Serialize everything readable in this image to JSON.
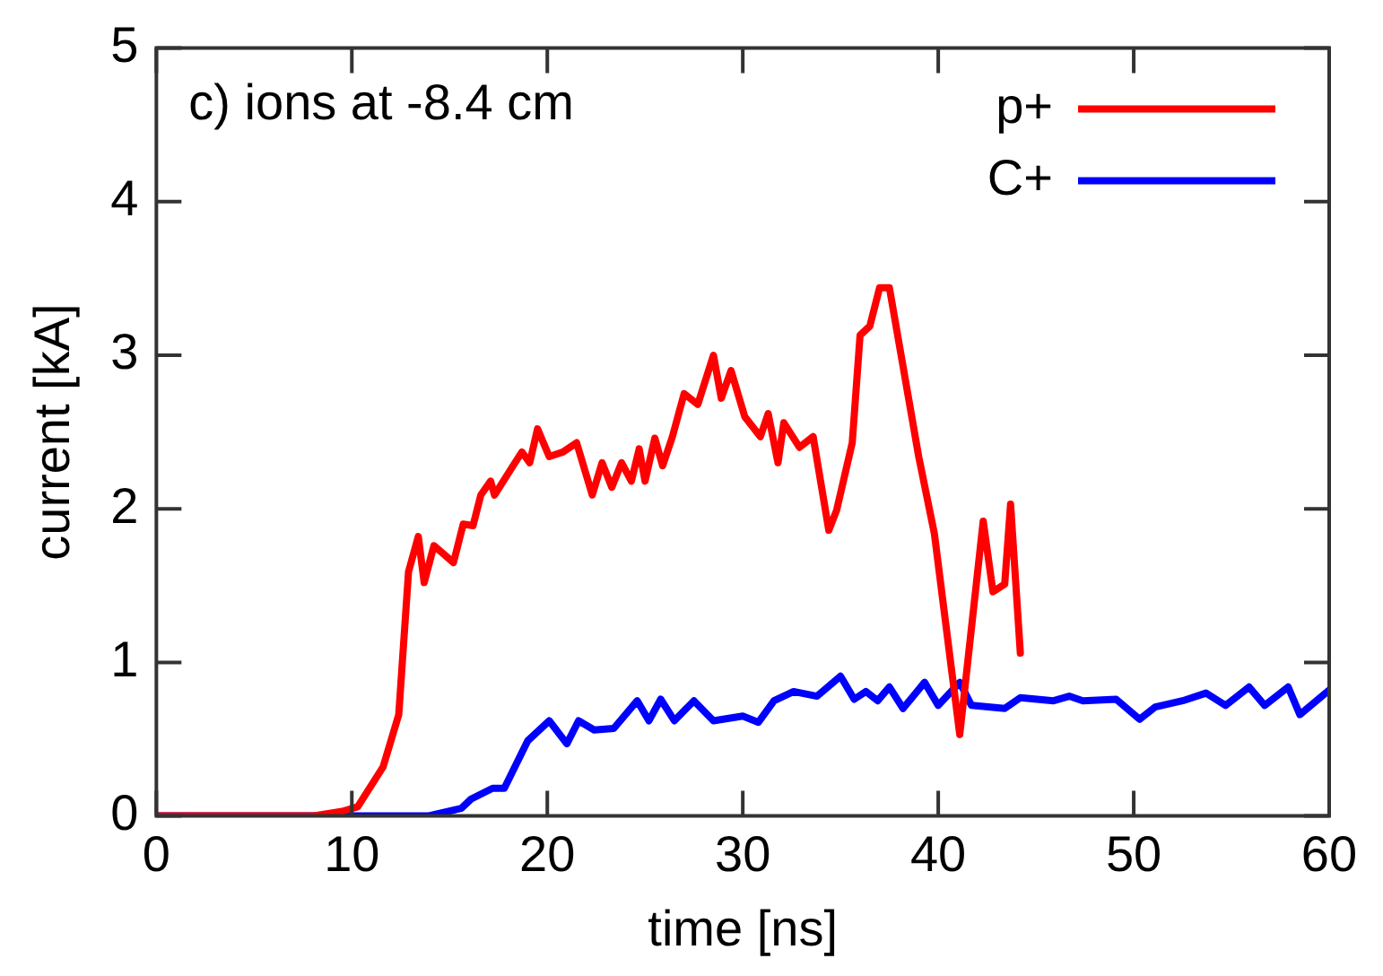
{
  "chart_data": {
    "type": "line",
    "xlabel": "time [ns]",
    "ylabel": "current [kA]",
    "annotations": [
      "c) ions at -8.4 cm"
    ],
    "xlim": [
      0,
      60
    ],
    "xticks": [
      0,
      10,
      20,
      30,
      40,
      50,
      60
    ],
    "ylim": [
      0,
      5
    ],
    "yticks": [
      0,
      1,
      2,
      3,
      4,
      5
    ],
    "grid": false,
    "legend": "top right",
    "marker": "none",
    "line_style": "solid",
    "series": [
      {
        "name": "p+",
        "color": "#ff0000",
        "x": [
          0,
          8,
          9.5,
          10.3,
          11.6,
          12.4,
          12.9,
          13.4,
          13.7,
          14.2,
          15.2,
          15.7,
          16.2,
          16.6,
          17.1,
          17.3,
          18.2,
          18.7,
          19.1,
          19.5,
          20.1,
          20.8,
          21.5,
          22.3,
          22.8,
          23.3,
          23.8,
          24.3,
          24.7,
          25.0,
          25.5,
          25.9,
          26.4,
          27.0,
          27.7,
          28.5,
          28.9,
          29.4,
          30.1,
          30.9,
          31.3,
          31.8,
          32.1,
          32.9,
          33.6,
          34.4,
          34.8,
          35.6,
          36.0,
          36.5,
          37.0,
          37.5,
          39.0,
          39.8,
          41.1,
          42.3,
          42.8,
          43.4,
          43.7,
          44.2
        ],
        "values": [
          0,
          0,
          0.03,
          0.06,
          0.32,
          0.66,
          1.59,
          1.82,
          1.52,
          1.76,
          1.65,
          1.9,
          1.89,
          2.09,
          2.18,
          2.09,
          2.27,
          2.37,
          2.3,
          2.52,
          2.34,
          2.37,
          2.43,
          2.09,
          2.3,
          2.14,
          2.3,
          2.18,
          2.39,
          2.18,
          2.46,
          2.28,
          2.47,
          2.75,
          2.68,
          3.0,
          2.72,
          2.9,
          2.6,
          2.47,
          2.62,
          2.3,
          2.56,
          2.4,
          2.47,
          1.86,
          1.99,
          2.43,
          3.13,
          3.19,
          3.44,
          3.44,
          2.34,
          1.84,
          0.53,
          1.92,
          1.46,
          1.51,
          2.03,
          1.06
        ]
      },
      {
        "name": "C+",
        "color": "#0000ff",
        "x": [
          0,
          13.9,
          15.6,
          16.1,
          17.2,
          17.8,
          19.0,
          20.1,
          21.0,
          21.6,
          22.4,
          23.4,
          24.6,
          25.2,
          25.8,
          26.5,
          27.5,
          28.5,
          30.0,
          30.8,
          31.6,
          32.6,
          33.8,
          35.0,
          35.7,
          36.3,
          36.9,
          37.5,
          38.2,
          39.3,
          40.0,
          41.1,
          41.7,
          43.4,
          44.2,
          45.9,
          46.7,
          47.4,
          49.1,
          50.3,
          51.1,
          52.5,
          53.7,
          54.7,
          55.9,
          56.7,
          57.9,
          58.5,
          60
        ],
        "values": [
          0,
          0,
          0.05,
          0.11,
          0.18,
          0.18,
          0.49,
          0.62,
          0.47,
          0.62,
          0.56,
          0.57,
          0.75,
          0.62,
          0.76,
          0.62,
          0.75,
          0.62,
          0.65,
          0.61,
          0.75,
          0.81,
          0.78,
          0.91,
          0.76,
          0.81,
          0.75,
          0.84,
          0.7,
          0.87,
          0.72,
          0.87,
          0.72,
          0.7,
          0.77,
          0.75,
          0.78,
          0.75,
          0.76,
          0.63,
          0.71,
          0.75,
          0.8,
          0.72,
          0.84,
          0.72,
          0.84,
          0.66,
          0.82
        ]
      }
    ]
  }
}
